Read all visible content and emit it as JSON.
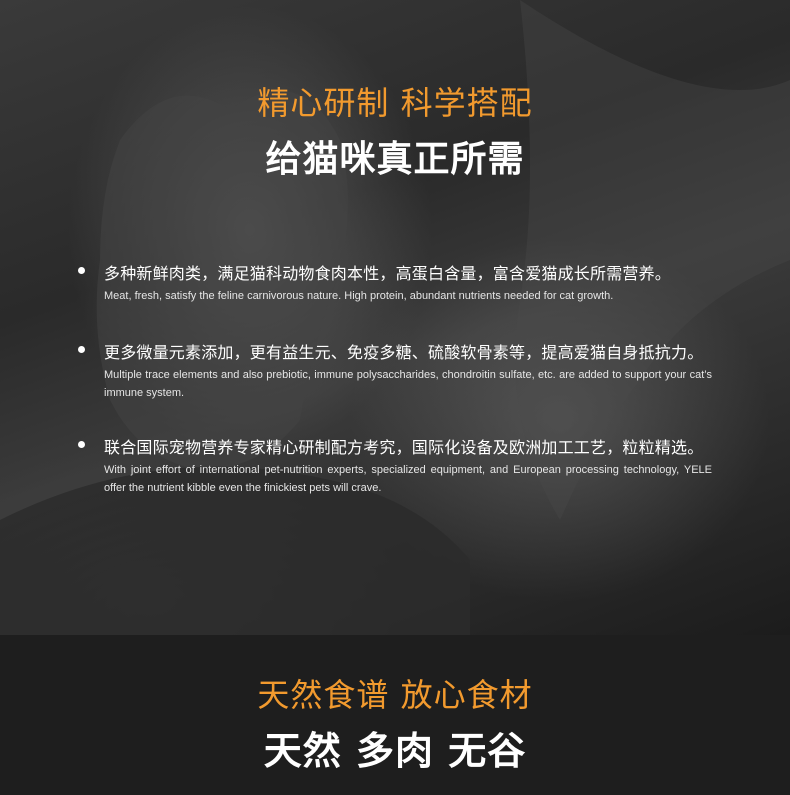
{
  "hero": {
    "headline_orange": "精心研制 科学搭配",
    "headline_white": "给猫咪真正所需",
    "bullets": [
      {
        "cn": "多种新鲜肉类，满足猫科动物食肉本性，高蛋白含量，富含爱猫成长所需营养。",
        "en": "Meat, fresh, satisfy the feline carnivorous nature. High protein, abundant nutrients needed for cat growth."
      },
      {
        "cn": "更多微量元素添加，更有益生元、免疫多糖、硫酸软骨素等，提高爱猫自身抵抗力。",
        "en": "Multiple trace elements and also prebiotic, immune polysaccharides, chondroitin sulfate, etc. are added to support your cat’s immune system."
      },
      {
        "cn": "联合国际宠物营养专家精心研制配方考究，国际化设备及欧洲加工工艺，粒粒精选。",
        "en": "With joint effort of international pet-nutrition experts, specialized equipment, and European processing technology, YELE offer the nutrient kibble even the finickiest pets will crave."
      }
    ]
  },
  "footer": {
    "headline_orange": "天然食谱 放心食材",
    "headline_white": "天然 多肉 无谷"
  },
  "colors": {
    "accent": "#f29a2e",
    "background": "#1e1e1e",
    "text": "#ffffff"
  }
}
